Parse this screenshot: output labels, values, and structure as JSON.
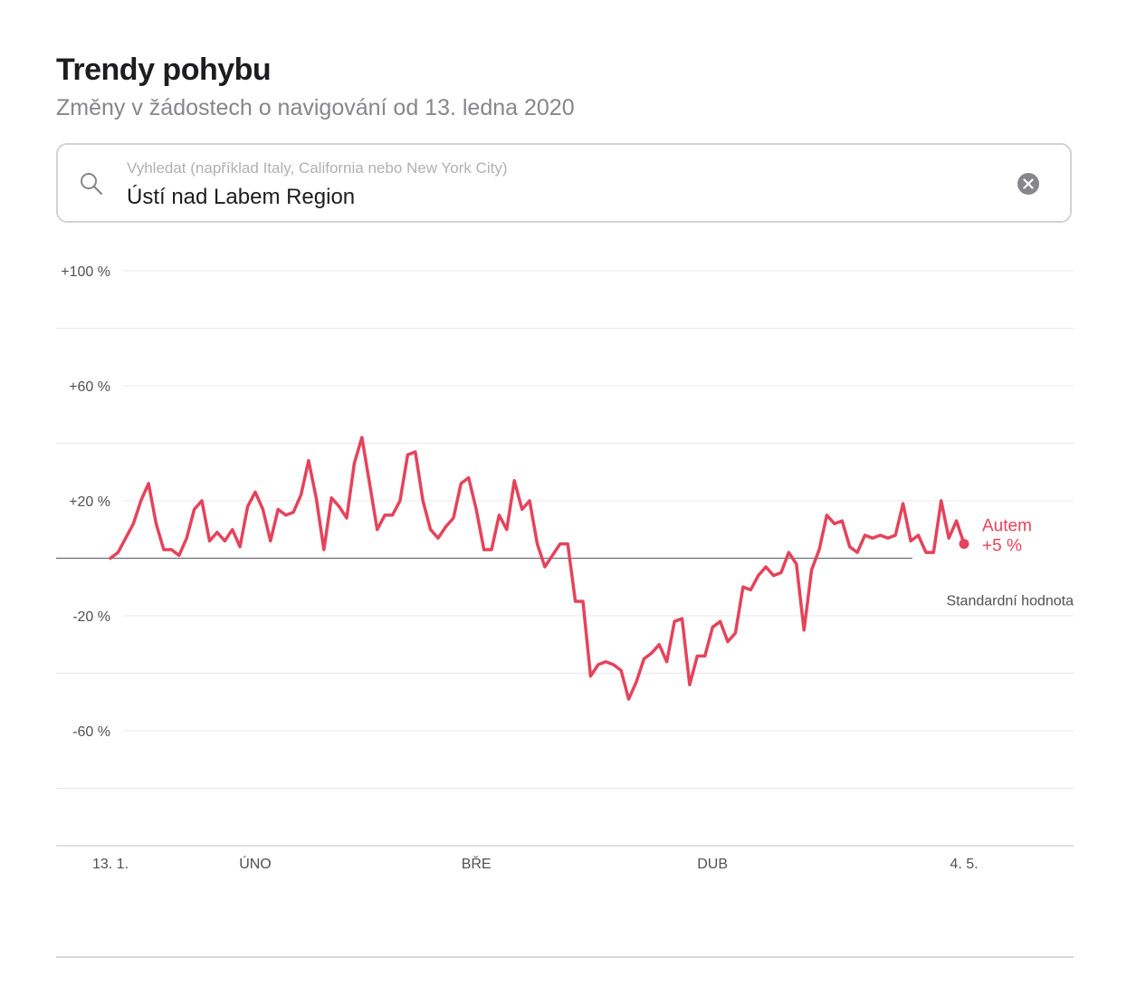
{
  "page": {
    "title": "Trendy pohybu",
    "subtitle": "Změny v žádostech o navigování od 13. ledna 2020"
  },
  "search": {
    "placeholder": "Vyhledat (například Italy, California nebo New York City)",
    "value": "Ústí nad Labem Region",
    "icon": "search-icon",
    "clear_icon": "clear-circle-icon"
  },
  "chart_data": {
    "type": "line",
    "title": "Trendy pohybu",
    "xlabel": "",
    "ylabel": "",
    "ylim": [
      -100,
      100
    ],
    "y_ticks": [
      {
        "value": 100,
        "label": "+100 %"
      },
      {
        "value": 60,
        "label": "+60 %"
      },
      {
        "value": 20,
        "label": "+20 %"
      },
      {
        "value": -20,
        "label": "-20 %"
      },
      {
        "value": -60,
        "label": "-60 %"
      }
    ],
    "y_gridlines": [
      100,
      80,
      60,
      40,
      20,
      -20,
      -40,
      -60,
      -80,
      -100
    ],
    "grid": true,
    "x_start": "2020-01-13",
    "x_end": "2020-05-04",
    "x_ticks": [
      {
        "day": 0,
        "label": "13. 1."
      },
      {
        "day": 19,
        "label": "ÚNO"
      },
      {
        "day": 48,
        "label": "BŘE"
      },
      {
        "day": 79,
        "label": "DUB"
      },
      {
        "day": 112,
        "label": "4. 5."
      }
    ],
    "baseline": {
      "value": 0,
      "label": "Standardní hodnota"
    },
    "series": [
      {
        "name": "Autem",
        "color": "#e5435b",
        "last_value_label": "+5 %",
        "values": [
          0,
          2,
          7,
          12,
          20,
          26,
          12,
          3,
          3,
          1,
          7,
          17,
          20,
          6,
          9,
          6,
          10,
          4,
          18,
          23,
          17,
          6,
          17,
          15,
          16,
          22,
          34,
          21,
          3,
          21,
          18,
          14,
          33,
          42,
          26,
          10,
          15,
          15,
          20,
          36,
          37,
          20,
          10,
          7,
          11,
          14,
          26,
          28,
          17,
          3,
          3,
          15,
          10,
          27,
          17,
          20,
          5,
          -3,
          1,
          5,
          5,
          -15,
          -15,
          -41,
          -37,
          -36,
          -37,
          -39,
          -49,
          -43,
          -35,
          -33,
          -30,
          -36,
          -22,
          -21,
          -44,
          -34,
          -34,
          -24,
          -22,
          -29,
          -26,
          -10,
          -11,
          -6,
          -3,
          -6,
          -5,
          2,
          -2,
          -25,
          -4,
          3,
          15,
          12,
          13,
          4,
          2,
          8,
          7,
          8,
          7,
          8,
          19,
          6,
          8,
          2,
          2,
          20,
          7,
          13,
          5
        ]
      }
    ]
  }
}
